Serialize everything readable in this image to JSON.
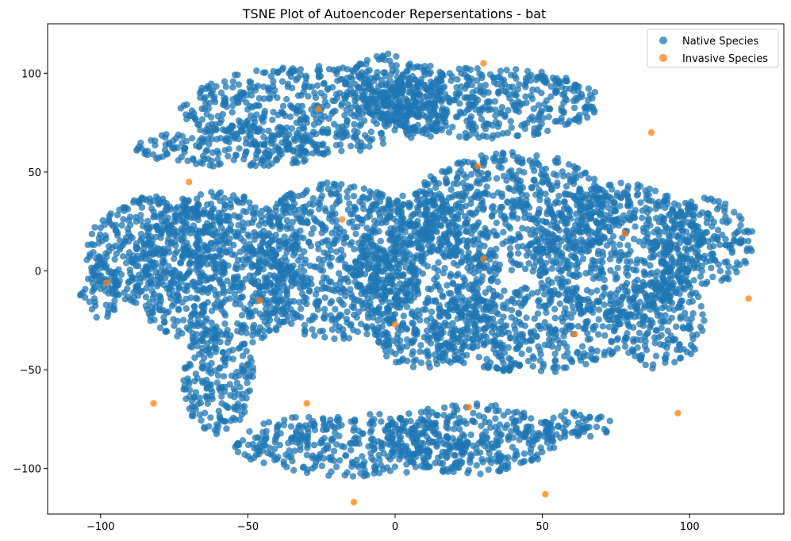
{
  "chart_data": {
    "type": "scatter",
    "title": "TSNE Plot of Autoencoder Repersentations - bat",
    "xlabel": "",
    "ylabel": "",
    "xlim": [
      -118,
      132
    ],
    "ylim": [
      -123,
      125
    ],
    "xticks": [
      -100,
      -50,
      0,
      50,
      100
    ],
    "yticks": [
      -100,
      -50,
      0,
      50,
      100
    ],
    "grid": false,
    "legend_position": "top-right",
    "series": [
      {
        "name": "Native Species",
        "color": "#1f77b4",
        "note": "dense cloud of thousands of points; main clusters approximated",
        "clusters": [
          {
            "cx": -25,
            "cy": 82,
            "rx": 48,
            "ry": 22
          },
          {
            "cx": 0,
            "cy": 93,
            "rx": 18,
            "ry": 17
          },
          {
            "cx": 30,
            "cy": 85,
            "rx": 40,
            "ry": 18
          },
          {
            "cx": -55,
            "cy": 62,
            "rx": 33,
            "ry": 10
          },
          {
            "cx": -80,
            "cy": 10,
            "rx": 25,
            "ry": 28
          },
          {
            "cx": -100,
            "cy": -10,
            "rx": 7,
            "ry": 14
          },
          {
            "cx": -60,
            "cy": 0,
            "rx": 30,
            "ry": 40
          },
          {
            "cx": -60,
            "cy": -55,
            "rx": 12,
            "ry": 28
          },
          {
            "cx": -20,
            "cy": 5,
            "rx": 30,
            "ry": 40
          },
          {
            "cx": 10,
            "cy": -5,
            "rx": 25,
            "ry": 45
          },
          {
            "cx": 40,
            "cy": 30,
            "rx": 35,
            "ry": 30
          },
          {
            "cx": 75,
            "cy": 10,
            "rx": 30,
            "ry": 35
          },
          {
            "cx": 105,
            "cy": 15,
            "rx": 17,
            "ry": 22
          },
          {
            "cx": 90,
            "cy": -25,
            "rx": 15,
            "ry": 25
          },
          {
            "cx": 45,
            "cy": -30,
            "rx": 35,
            "ry": 22
          },
          {
            "cx": -15,
            "cy": -88,
            "rx": 40,
            "ry": 16
          },
          {
            "cx": 25,
            "cy": -85,
            "rx": 30,
            "ry": 18
          },
          {
            "cx": 55,
            "cy": -78,
            "rx": 20,
            "ry": 7
          }
        ]
      },
      {
        "name": "Invasive Species",
        "color": "#ff7f0e",
        "points": [
          [
            30,
            105
          ],
          [
            -26,
            82
          ],
          [
            87,
            70
          ],
          [
            28,
            53
          ],
          [
            -70,
            45
          ],
          [
            -18,
            26
          ],
          [
            78,
            19
          ],
          [
            30,
            6
          ],
          [
            -98,
            -6
          ],
          [
            -46,
            -15
          ],
          [
            120,
            -14
          ],
          [
            0,
            -27
          ],
          [
            61,
            -32
          ],
          [
            -82,
            -67
          ],
          [
            -30,
            -67
          ],
          [
            25,
            -69
          ],
          [
            96,
            -72
          ],
          [
            51,
            -113
          ],
          [
            -14,
            -117
          ]
        ]
      }
    ]
  }
}
